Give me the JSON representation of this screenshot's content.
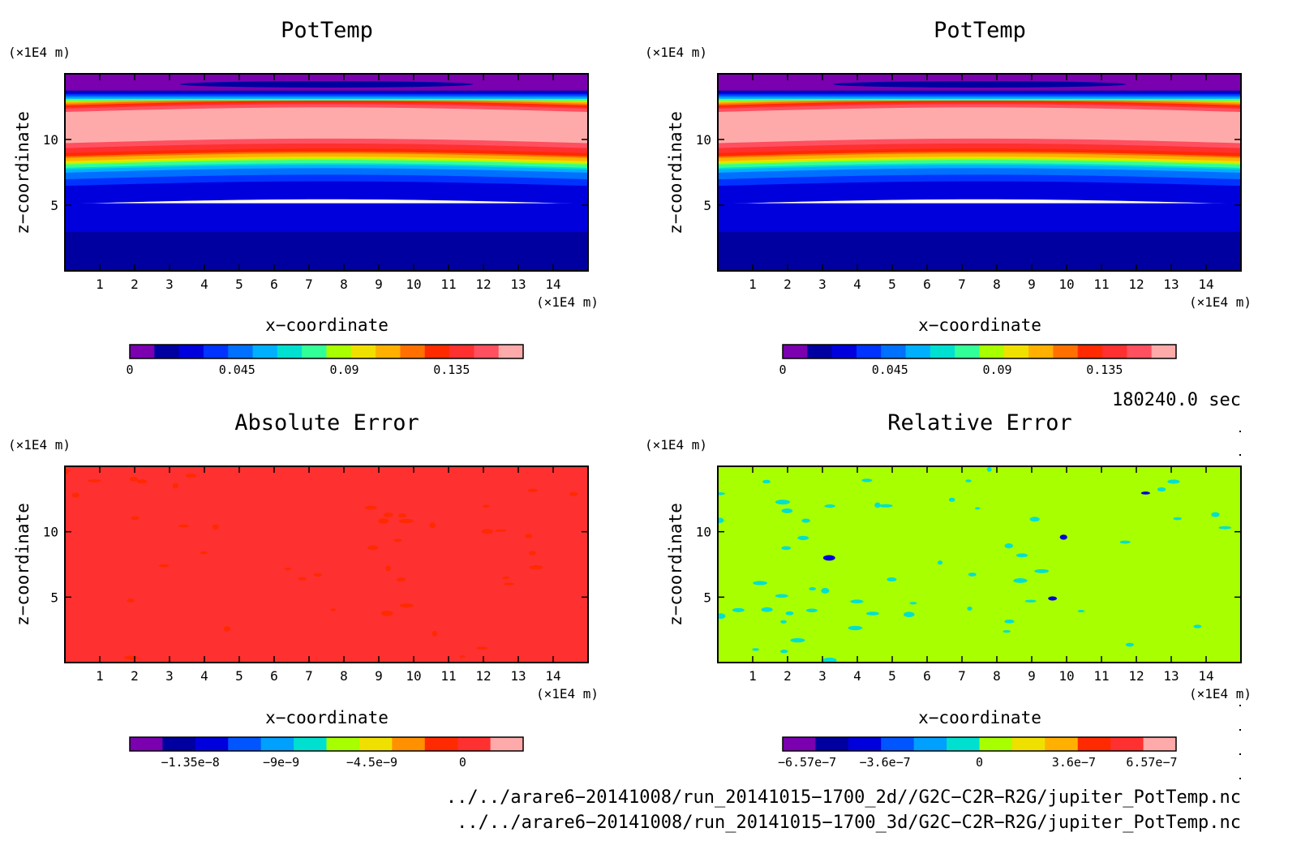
{
  "panels": [
    {
      "title": "PotTemp",
      "unit_label": "(×1E4 m)",
      "x_unit_label": "(×1E4 m)",
      "xlabel": "x−coordinate",
      "ylabel": "z−coordinate",
      "colorbar_labels": [
        "0",
        "0.045",
        "0.09",
        "0.135"
      ],
      "plot_kind": "bands"
    },
    {
      "title": "PotTemp",
      "unit_label": "(×1E4 m)",
      "x_unit_label": "(×1E4 m)",
      "xlabel": "x−coordinate",
      "ylabel": "z−coordinate",
      "colorbar_labels": [
        "0",
        "0.045",
        "0.09",
        "0.135"
      ],
      "plot_kind": "bands"
    },
    {
      "title": "Absolute Error",
      "unit_label": "(×1E4 m)",
      "x_unit_label": "(×1E4 m)",
      "xlabel": "x−coordinate",
      "ylabel": "z−coordinate",
      "colorbar_labels": [
        "−1.35e−8",
        "−9e−9",
        "−4.5e−9",
        "0"
      ],
      "plot_kind": "abs_error"
    },
    {
      "title": "Relative Error",
      "unit_label": "(×1E4 m)",
      "x_unit_label": "(×1E4 m)",
      "xlabel": "x−coordinate",
      "ylabel": "z−coordinate",
      "colorbar_labels": [
        "−6.57e−7",
        "−3.6e−7",
        "0",
        "3.6e−7",
        "6.57e−7"
      ],
      "plot_kind": "rel_error"
    }
  ],
  "time_label": "180240.0 sec",
  "footer_lines": [
    "../../arare6−20141008/run_20141015−1700_2d//G2C−C2R−R2G/jupiter_PotTemp.nc",
    "../../arare6−20141008/run_20141015−1700_3d/G2C−C2R−R2G/jupiter_PotTemp.nc"
  ],
  "chart_data": [
    {
      "type": "heatmap",
      "title": "PotTemp",
      "xlabel": "x−coordinate",
      "ylabel": "z−coordinate",
      "x_ticks": [
        1,
        2,
        3,
        4,
        5,
        6,
        7,
        8,
        9,
        10,
        11,
        12,
        13,
        14
      ],
      "y_ticks": [
        5,
        10
      ],
      "xlim": [
        0,
        15
      ],
      "ylim": [
        0,
        15
      ],
      "colorbar_ticks": [
        0,
        0.045,
        0.09,
        0.135
      ],
      "colorbar_range": [
        0,
        0.165
      ],
      "colormap": [
        "#7a00b0",
        "#0000a0",
        "#0000dd",
        "#0033ff",
        "#0070ff",
        "#00b0ff",
        "#00e0d0",
        "#33ff99",
        "#a8ff00",
        "#f0e000",
        "#ffb000",
        "#ff7000",
        "#ff2a00",
        "#ff3030",
        "#ff5060",
        "#ffaaaa"
      ],
      "z_profile": [
        {
          "z": 0.0,
          "value": 0.012
        },
        {
          "z": 2.8,
          "value": 0.02
        },
        {
          "z": 6.5,
          "value": 0.03
        },
        {
          "z": 7.5,
          "value": 0.05
        },
        {
          "z": 8.2,
          "value": 0.09
        },
        {
          "z": 9.0,
          "value": 0.135
        },
        {
          "z": 10.0,
          "value": 0.16
        },
        {
          "z": 12.0,
          "value": 0.16
        },
        {
          "z": 12.5,
          "value": 0.14
        },
        {
          "z": 13.2,
          "value": 0.06
        },
        {
          "z": 13.8,
          "value": 0.01
        },
        {
          "z": 15.0,
          "value": 0.002
        }
      ]
    },
    {
      "type": "heatmap",
      "title": "PotTemp",
      "xlabel": "x−coordinate",
      "ylabel": "z−coordinate",
      "x_ticks": [
        1,
        2,
        3,
        4,
        5,
        6,
        7,
        8,
        9,
        10,
        11,
        12,
        13,
        14
      ],
      "y_ticks": [
        5,
        10
      ],
      "xlim": [
        0,
        15
      ],
      "ylim": [
        0,
        15
      ],
      "colorbar_ticks": [
        0,
        0.045,
        0.09,
        0.135
      ],
      "colorbar_range": [
        0,
        0.165
      ],
      "colormap": [
        "#7a00b0",
        "#0000a0",
        "#0000dd",
        "#0033ff",
        "#0070ff",
        "#00b0ff",
        "#00e0d0",
        "#33ff99",
        "#a8ff00",
        "#f0e000",
        "#ffb000",
        "#ff7000",
        "#ff2a00",
        "#ff3030",
        "#ff5060",
        "#ffaaaa"
      ],
      "z_profile": [
        {
          "z": 0.0,
          "value": 0.012
        },
        {
          "z": 2.8,
          "value": 0.02
        },
        {
          "z": 6.5,
          "value": 0.03
        },
        {
          "z": 7.5,
          "value": 0.05
        },
        {
          "z": 8.2,
          "value": 0.09
        },
        {
          "z": 9.0,
          "value": 0.135
        },
        {
          "z": 10.0,
          "value": 0.16
        },
        {
          "z": 12.0,
          "value": 0.16
        },
        {
          "z": 12.5,
          "value": 0.14
        },
        {
          "z": 13.2,
          "value": 0.06
        },
        {
          "z": 13.8,
          "value": 0.01
        },
        {
          "z": 15.0,
          "value": 0.002
        }
      ]
    },
    {
      "type": "heatmap",
      "title": "Absolute Error",
      "xlabel": "x−coordinate",
      "ylabel": "z−coordinate",
      "x_ticks": [
        1,
        2,
        3,
        4,
        5,
        6,
        7,
        8,
        9,
        10,
        11,
        12,
        13,
        14
      ],
      "y_ticks": [
        5,
        10
      ],
      "xlim": [
        0,
        15
      ],
      "ylim": [
        0,
        15
      ],
      "colorbar_ticks": [
        -1.35e-08,
        -9e-09,
        -4.5e-09,
        0
      ],
      "colorbar_range": [
        -1.65e-08,
        3e-09
      ],
      "colormap": [
        "#7a00b0",
        "#0000a0",
        "#0000dd",
        "#0055ff",
        "#00a0ff",
        "#00e0d0",
        "#a8ff00",
        "#f0e000",
        "#ff9000",
        "#ff2a00",
        "#ff3030",
        "#ffaaaa"
      ],
      "background_value": 0
    },
    {
      "type": "heatmap",
      "title": "Relative Error",
      "xlabel": "x−coordinate",
      "ylabel": "z−coordinate",
      "x_ticks": [
        1,
        2,
        3,
        4,
        5,
        6,
        7,
        8,
        9,
        10,
        11,
        12,
        13,
        14
      ],
      "y_ticks": [
        5,
        10
      ],
      "xlim": [
        0,
        15
      ],
      "ylim": [
        0,
        15
      ],
      "colorbar_ticks": [
        -6.57e-07,
        -3.6e-07,
        0,
        3.6e-07,
        6.57e-07
      ],
      "colorbar_range": [
        -7.5e-07,
        7.5e-07
      ],
      "colormap": [
        "#7a00b0",
        "#0000a0",
        "#0000dd",
        "#0055ff",
        "#00a0ff",
        "#00e0d0",
        "#a8ff00",
        "#f0e000",
        "#ffb000",
        "#ff2a00",
        "#ff3030",
        "#ffaaaa"
      ],
      "background_value": 0
    }
  ]
}
